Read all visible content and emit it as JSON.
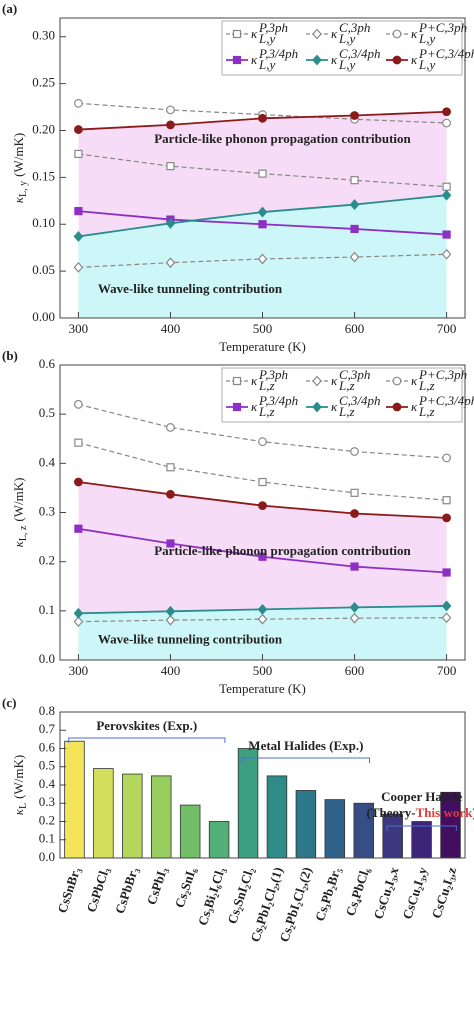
{
  "chart_data": [
    {
      "type": "line",
      "panel": "(a)",
      "xlabel": "Temperature (K)",
      "ylabel": "κ",
      "ylabel_sub": "L, y",
      "ylabel_unit": "(W/mK)",
      "x": [
        300,
        400,
        500,
        600,
        700
      ],
      "xlim": [
        280,
        720
      ],
      "xticks": [
        300,
        400,
        500,
        600,
        700
      ],
      "ylim": [
        0,
        0.32
      ],
      "yticks": [
        {
          "value": 0,
          "label": "0.00"
        },
        0.05,
        {
          "value": 0.1,
          "label": "0.10"
        },
        0.15,
        {
          "value": 0.2,
          "label": "0.20"
        },
        0.25,
        {
          "value": 0.3,
          "label": "0.30"
        }
      ],
      "legend": "upper right",
      "series": [
        {
          "name": "κ",
          "sub": "L,y",
          "sup": "P,3ph",
          "color": "#888888",
          "dashed": true,
          "marker": "square",
          "hollow": true,
          "values": [
            0.175,
            0.162,
            0.154,
            0.147,
            0.14
          ]
        },
        {
          "name": "κ",
          "sub": "L,y",
          "sup": "C,3ph",
          "color": "#888888",
          "dashed": true,
          "marker": "diamond",
          "hollow": true,
          "values": [
            0.054,
            0.059,
            0.063,
            0.065,
            0.068
          ]
        },
        {
          "name": "κ",
          "sub": "L,y",
          "sup": "P+C,3ph",
          "color": "#888888",
          "dashed": true,
          "marker": "circle",
          "hollow": true,
          "values": [
            0.229,
            0.222,
            0.217,
            0.212,
            0.208
          ]
        },
        {
          "name": "κ",
          "sub": "L,y",
          "sup": "P,3/4ph",
          "color": "#8e2fc4",
          "dashed": false,
          "marker": "square",
          "hollow": false,
          "values": [
            0.114,
            0.105,
            0.1,
            0.095,
            0.089
          ]
        },
        {
          "name": "κ",
          "sub": "L,y",
          "sup": "C,3/4ph",
          "color": "#2a8c8c",
          "dashed": false,
          "marker": "diamond",
          "hollow": false,
          "values": [
            0.087,
            0.101,
            0.113,
            0.121,
            0.131
          ]
        },
        {
          "name": "κ",
          "sub": "L,y",
          "sup": "P+C,3/4ph",
          "color": "#8b1a1a",
          "dashed": false,
          "marker": "circle",
          "hollow": false,
          "values": [
            0.201,
            0.206,
            0.213,
            0.216,
            0.22
          ]
        }
      ],
      "annotations": [
        {
          "text": "Particle-like phonon propagation contribution",
          "color": "#e03a3a"
        },
        {
          "text": "Wave-like tunneling contribution",
          "color": "#3a8a2a"
        }
      ]
    },
    {
      "type": "line",
      "panel": "(b)",
      "xlabel": "Temperature (K)",
      "ylabel": "κ",
      "ylabel_sub": "L, z",
      "ylabel_unit": "(W/mK)",
      "x": [
        300,
        400,
        500,
        600,
        700
      ],
      "xlim": [
        280,
        720
      ],
      "xticks": [
        300,
        400,
        500,
        600,
        700
      ],
      "ylim": [
        0,
        0.6
      ],
      "yticks": [
        {
          "value": 0,
          "label": "0.0"
        },
        0.1,
        0.2,
        0.3,
        0.4,
        0.5,
        0.6
      ],
      "legend": "upper right",
      "series": [
        {
          "name": "κ",
          "sub": "L,z",
          "sup": "P,3ph",
          "color": "#888888",
          "dashed": true,
          "marker": "square",
          "hollow": true,
          "values": [
            0.442,
            0.392,
            0.362,
            0.34,
            0.325
          ]
        },
        {
          "name": "κ",
          "sub": "L,z",
          "sup": "C,3ph",
          "color": "#888888",
          "dashed": true,
          "marker": "diamond",
          "hollow": true,
          "values": [
            0.078,
            0.081,
            0.083,
            0.085,
            0.086
          ]
        },
        {
          "name": "κ",
          "sub": "L,z",
          "sup": "P+C,3ph",
          "color": "#888888",
          "dashed": true,
          "marker": "circle",
          "hollow": true,
          "values": [
            0.52,
            0.473,
            0.444,
            0.424,
            0.411
          ]
        },
        {
          "name": "κ",
          "sub": "L,z",
          "sup": "P,3/4ph",
          "color": "#8e2fc4",
          "dashed": false,
          "marker": "square",
          "hollow": false,
          "values": [
            0.267,
            0.237,
            0.21,
            0.19,
            0.178
          ]
        },
        {
          "name": "κ",
          "sub": "L,z",
          "sup": "C,3/4ph",
          "color": "#2a8c8c",
          "dashed": false,
          "marker": "diamond",
          "hollow": false,
          "values": [
            0.095,
            0.099,
            0.103,
            0.107,
            0.11
          ]
        },
        {
          "name": "κ",
          "sub": "L,z",
          "sup": "P+C,3/4ph",
          "color": "#8b1a1a",
          "dashed": false,
          "marker": "circle",
          "hollow": false,
          "values": [
            0.362,
            0.337,
            0.314,
            0.298,
            0.289
          ]
        }
      ],
      "annotations": [
        {
          "text": "Particle-like phonon propagation contribution",
          "color": "#e03a3a"
        },
        {
          "text": "Wave-like tunneling contribution",
          "color": "#3a8a2a"
        }
      ]
    },
    {
      "type": "bar",
      "panel": "(c)",
      "ylabel": "κ",
      "ylabel_sub": "L",
      "ylabel_unit": "(W/mK)",
      "categories": [
        "CsSnBr₃",
        "CsPbCl₃",
        "CsPbBr₃",
        "CsPbI₃",
        "Cs₂SnI₆",
        "Cs₃Bi₂I₆Cl₃",
        "Cs₂SnI₂Cl₂",
        "Cs₂PbI₂Cl₂,(1)",
        "Cs₂PbI₂Cl₂,(2)",
        "Cs₃Pb₂Br₅",
        "Cs₄PbCl₆",
        "CsCu₂I₃,x",
        "CsCu₂I₃,y",
        "CsCu₂I₃,z"
      ],
      "values": [
        0.64,
        0.49,
        0.46,
        0.45,
        0.29,
        0.2,
        0.6,
        0.45,
        0.37,
        0.32,
        0.3,
        0.24,
        0.2,
        0.36
      ],
      "colors": [
        "#f4e45a",
        "#d3df5c",
        "#b5d65c",
        "#97cc5e",
        "#72bf68",
        "#52af76",
        "#3c9f80",
        "#2f8b88",
        "#2d778a",
        "#316289",
        "#374d85",
        "#3b3880",
        "#3e2478",
        "#430e60"
      ],
      "ylim": [
        0,
        0.8
      ],
      "yticks": [
        {
          "value": 0,
          "label": "0.0"
        },
        0.1,
        0.2,
        0.3,
        0.4,
        0.5,
        0.6,
        0.7,
        0.8
      ],
      "groups": [
        "Perovskites (Exp.)",
        "Metal Halides (Exp.)",
        "Cooper Halide"
      ],
      "annotations": [
        {
          "text": "(Theory-",
          "color": "#222222"
        },
        {
          "text": "This work",
          "color": "#e03a3a"
        },
        {
          "text": ")",
          "color": "#222222"
        }
      ]
    }
  ]
}
